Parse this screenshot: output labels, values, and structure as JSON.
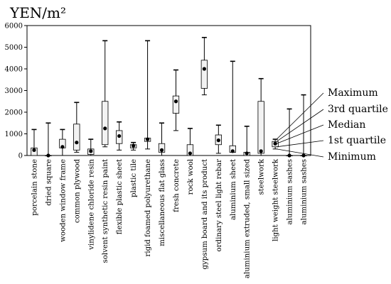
{
  "chart_data": {
    "type": "box",
    "unit_label": "YEN/m²",
    "y_ticks": [
      0,
      1000,
      2000,
      3000,
      4000,
      5000,
      6000
    ],
    "ylim": [
      0,
      6000
    ],
    "grid": false,
    "legend_labels": [
      "Maximum",
      "3rd quartile",
      "Median",
      "1st quartile",
      "Minimum"
    ],
    "categories": [
      "porcelain stone",
      "dried square",
      "wooden window frame",
      "common plywood",
      "vinylidene chloride resin",
      "solvent synthetic resin paint",
      "flexible plastic sheet",
      "plastic tile",
      "rigid foamed polyurethane",
      "miscellaneous flat glass",
      "fresh concrete",
      "rock wool",
      "gypsum board and its product",
      "ordinary steel light rebar",
      "aluminium sheet",
      "aluminium extruded, small sized",
      "steelwork",
      "light weight steelwork",
      "aluminium sashes",
      "aluminium sashes"
    ],
    "boxes": [
      {
        "min": 0,
        "q1": 0,
        "median": 250,
        "q3": 350,
        "max": 1200
      },
      {
        "min": 0,
        "q1": 0,
        "median": 0,
        "q3": 0,
        "max": 1500
      },
      {
        "min": 0,
        "q1": 350,
        "median": 400,
        "q3": 750,
        "max": 1200
      },
      {
        "min": 150,
        "q1": 250,
        "median": 600,
        "q3": 1450,
        "max": 2450
      },
      {
        "min": 0,
        "q1": 50,
        "median": 200,
        "q3": 300,
        "max": 750
      },
      {
        "min": 400,
        "q1": 500,
        "median": 1250,
        "q3": 2500,
        "max": 5300
      },
      {
        "min": 250,
        "q1": 550,
        "median": 900,
        "q3": 1150,
        "max": 1550
      },
      {
        "min": 250,
        "q1": 350,
        "median": 450,
        "q3": 500,
        "max": 600
      },
      {
        "min": 300,
        "q1": 650,
        "median": 750,
        "q3": 800,
        "max": 5300
      },
      {
        "min": 0,
        "q1": 150,
        "median": 250,
        "q3": 550,
        "max": 1500
      },
      {
        "min": 1150,
        "q1": 1950,
        "median": 2500,
        "q3": 2750,
        "max": 3950
      },
      {
        "min": 0,
        "q1": 0,
        "median": 100,
        "q3": 500,
        "max": 1250
      },
      {
        "min": 2800,
        "q1": 3100,
        "median": 4000,
        "q3": 4400,
        "max": 5450
      },
      {
        "min": 100,
        "q1": 500,
        "median": 700,
        "q3": 950,
        "max": 1400
      },
      {
        "min": 150,
        "q1": 150,
        "median": 200,
        "q3": 450,
        "max": 4350
      },
      {
        "min": 0,
        "q1": 0,
        "median": 100,
        "q3": 150,
        "max": 1350
      },
      {
        "min": 0,
        "q1": 100,
        "median": 200,
        "q3": 2500,
        "max": 3550
      },
      {
        "min": 300,
        "q1": 400,
        "median": 550,
        "q3": 650,
        "max": 750
      },
      {
        "min": 0,
        "q1": 0,
        "median": 0,
        "q3": 0,
        "max": 2150
      },
      {
        "min": 0,
        "q1": 0,
        "median": 0,
        "q3": 0,
        "max": 2800
      }
    ]
  }
}
